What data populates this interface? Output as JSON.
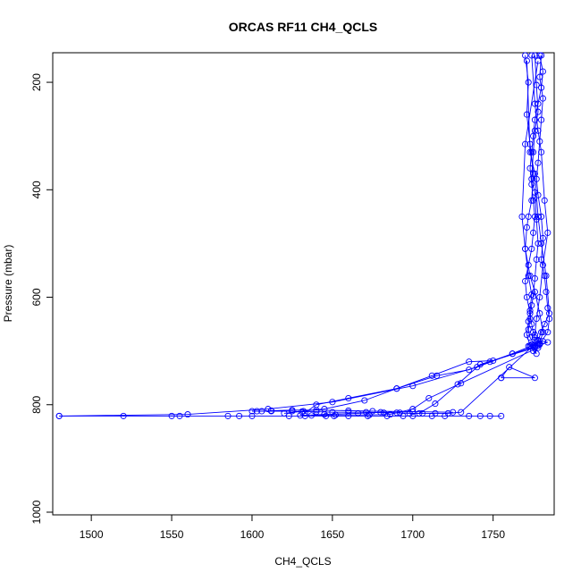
{
  "chart_data": {
    "type": "line",
    "title": "ORCAS RF11 CH4_QCLS",
    "xlabel": "CH4_QCLS",
    "ylabel": "Pressure (mbar)",
    "xlim": [
      1476,
      1788
    ],
    "ylim": [
      1005,
      145
    ],
    "y_reversed": true,
    "xticks": [
      1500,
      1550,
      1600,
      1650,
      1700,
      1750
    ],
    "yticks": [
      200,
      400,
      600,
      800,
      1000
    ],
    "color": "#0000ff",
    "marker": "open-circle",
    "grid": false,
    "series": [
      {
        "x": [
          1779,
          1781,
          1780,
          1778,
          1776,
          1775,
          1774,
          1773,
          1774,
          1775,
          1776,
          1775,
          1774,
          1772,
          1770,
          1771,
          1773,
          1774,
          1775,
          1776,
          1778,
          1781,
          1784,
          1779,
          1773,
          1762,
          1740,
          1700,
          1650,
          1610,
          1560,
          1480
        ],
        "y": [
          150,
          180,
          210,
          240,
          270,
          300,
          330,
          360,
          390,
          420,
          450,
          480,
          510,
          540,
          570,
          600,
          630,
          650,
          665,
          675,
          680,
          682,
          684,
          688,
          692,
          705,
          730,
          765,
          795,
          808,
          818,
          821
        ]
      },
      {
        "x": [
          1480,
          1520,
          1550,
          1555,
          1585,
          1592,
          1600,
          1623,
          1633,
          1646,
          1651,
          1660,
          1672,
          1684,
          1694,
          1700,
          1712,
          1720,
          1735,
          1742,
          1748,
          1755
        ],
        "y": [
          821,
          821,
          821,
          821,
          821,
          821,
          821,
          821,
          821,
          821,
          821,
          821,
          821,
          821,
          821,
          821,
          821,
          821,
          821,
          821,
          821,
          821
        ]
      },
      {
        "x": [
          1600,
          1603,
          1612,
          1625,
          1631,
          1640,
          1650,
          1660,
          1671,
          1682,
          1690,
          1698,
          1706,
          1714,
          1722,
          1730,
          1778
        ],
        "y": [
          812,
          812,
          812,
          812,
          813,
          813,
          814,
          814,
          814,
          815,
          815,
          816,
          816,
          816,
          816,
          814,
          682
        ]
      },
      {
        "x": [
          1606,
          1612,
          1625,
          1640,
          1660,
          1675,
          1700,
          1725
        ],
        "y": [
          812,
          811,
          810,
          810,
          811,
          812,
          813,
          814
        ]
      },
      {
        "x": [
          1770,
          1772,
          1771,
          1773,
          1775,
          1774,
          1772,
          1771,
          1770,
          1772,
          1774,
          1773,
          1772,
          1771,
          1773,
          1775,
          1777,
          1774
        ],
        "y": [
          150,
          200,
          260,
          315,
          370,
          420,
          450,
          470,
          510,
          560,
          595,
          625,
          645,
          670,
          690,
          700,
          705,
          688
        ]
      },
      {
        "x": [
          1780,
          1779,
          1781,
          1780,
          1779,
          1778,
          1777,
          1778,
          1780,
          1781,
          1780,
          1782,
          1783,
          1784,
          1785,
          1784,
          1779
        ],
        "y": [
          150,
          190,
          230,
          270,
          310,
          350,
          380,
          410,
          450,
          490,
          530,
          560,
          590,
          620,
          640,
          665,
          687
        ]
      },
      {
        "x": [
          1776,
          1777,
          1778,
          1776,
          1775,
          1774,
          1776,
          1777,
          1778,
          1777,
          1776,
          1775,
          1774,
          1773,
          1772,
          1773,
          1776,
          1772
        ],
        "y": [
          150,
          205,
          255,
          290,
          330,
          380,
          405,
          455,
          500,
          530,
          565,
          598,
          615,
          640,
          660,
          675,
          689,
          691
        ]
      },
      {
        "x": [
          1774,
          1776,
          1778,
          1780,
          1782,
          1784,
          1781,
          1779,
          1777,
          1776,
          1775
        ],
        "y": [
          150,
          240,
          290,
          330,
          420,
          480,
          540,
          600,
          640,
          670,
          690
        ]
      },
      {
        "x": [
          1771,
          1773,
          1776,
          1778,
          1780,
          1783,
          1785,
          1782,
          1780,
          1778,
          1776
        ],
        "y": [
          160,
          330,
          370,
          450,
          500,
          560,
          630,
          650,
          665,
          680,
          692
        ]
      },
      {
        "x": [
          1778,
          1770,
          1768,
          1770,
          1773,
          1776,
          1779,
          1781,
          1779
        ],
        "y": [
          160,
          315,
          450,
          510,
          560,
          590,
          630,
          665,
          686
        ]
      },
      {
        "x": [
          1755,
          1760,
          1776,
          1755
        ],
        "y": [
          750,
          730,
          750,
          750
        ]
      },
      {
        "x": [
          1778,
          1762,
          1748,
          1735,
          1715,
          1690,
          1660,
          1640,
          1633
        ],
        "y": [
          686,
          705,
          720,
          735,
          746,
          770,
          788,
          800,
          815
        ]
      },
      {
        "x": [
          1778,
          1750,
          1735,
          1712,
          1690,
          1670,
          1645,
          1632,
          1620
        ],
        "y": [
          690,
          718,
          720,
          746,
          770,
          792,
          808,
          812,
          816
        ]
      },
      {
        "x": [
          1776,
          1742,
          1728,
          1714,
          1704,
          1692,
          1680,
          1666,
          1645,
          1630
        ],
        "y": [
          694,
          725,
          762,
          798,
          816,
          815,
          814,
          816,
          818,
          820
        ]
      },
      {
        "x": [
          1778,
          1730,
          1710,
          1700,
          1686,
          1673,
          1652,
          1637
        ],
        "y": [
          694,
          760,
          788,
          808,
          818,
          819,
          819,
          820
        ]
      }
    ]
  }
}
